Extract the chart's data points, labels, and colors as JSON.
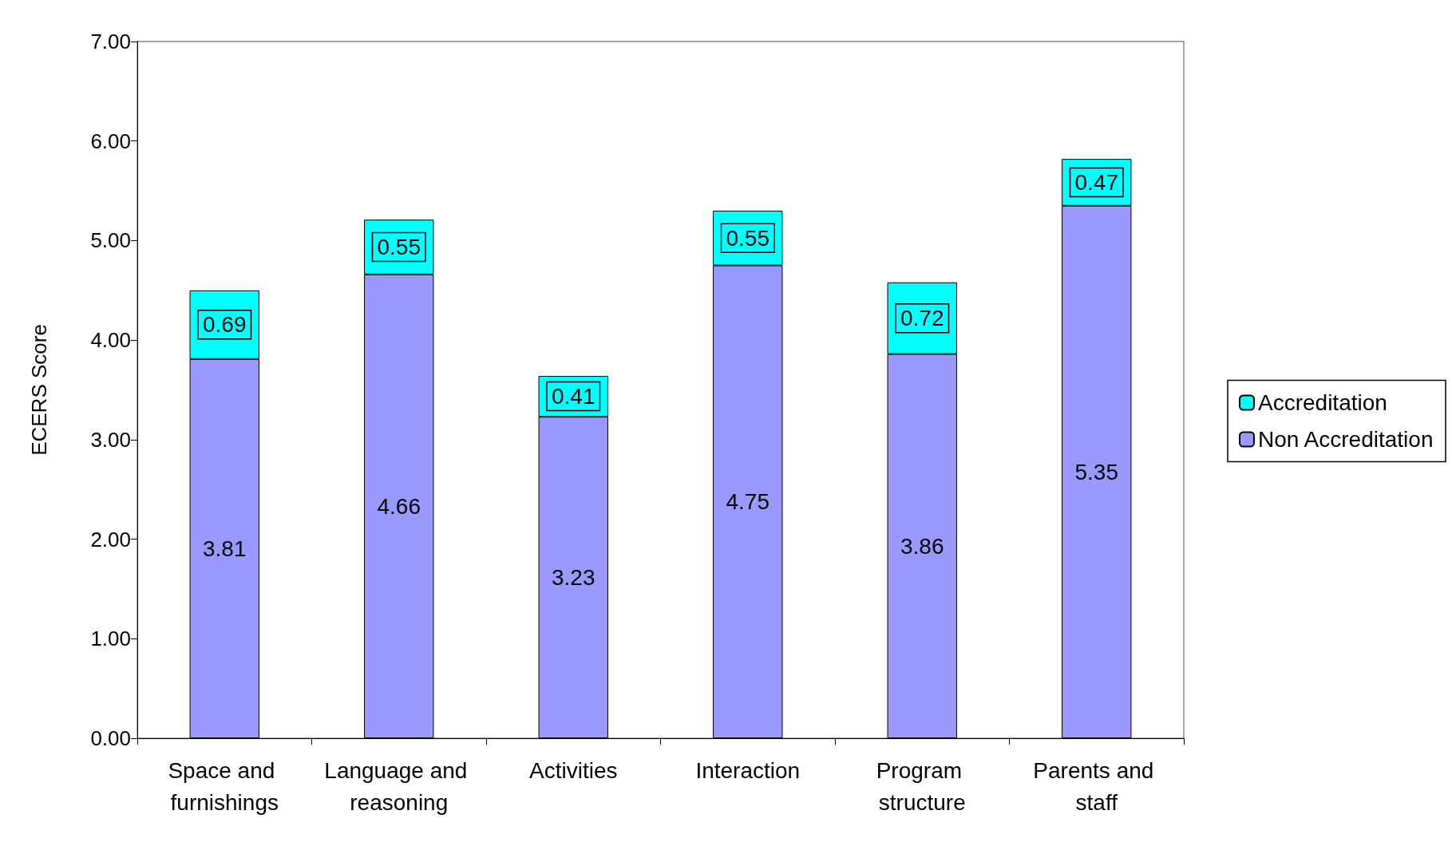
{
  "chart_data": {
    "type": "bar",
    "ylabel": "ECERS Score",
    "stacked": true,
    "data_labels": true,
    "legend": "right",
    "grid": false,
    "categories": [
      "Space and furnishings",
      "Language and reasoning",
      "Activities",
      "Interaction",
      "Program structure",
      "Parents and staff"
    ],
    "series": [
      {
        "name": "Non Accreditation",
        "color": "#9999ff",
        "values": [
          3.81,
          4.66,
          3.23,
          4.75,
          3.86,
          5.35
        ]
      },
      {
        "name": "Accreditation",
        "color": "#00ffff",
        "values": [
          0.69,
          0.55,
          0.41,
          0.55,
          0.72,
          0.47
        ]
      }
    ],
    "ylim": [
      0,
      7
    ],
    "yticks": [
      {
        "value": 0,
        "label": "0.00"
      },
      {
        "value": 1,
        "label": "1.00"
      },
      {
        "value": 2,
        "label": "2.00"
      },
      {
        "value": 3,
        "label": "3.00"
      },
      {
        "value": 4,
        "label": "4.00"
      },
      {
        "value": 5,
        "label": "5.00"
      },
      {
        "value": 6,
        "label": "6.00"
      },
      {
        "value": 7,
        "label": "7.00"
      }
    ]
  }
}
